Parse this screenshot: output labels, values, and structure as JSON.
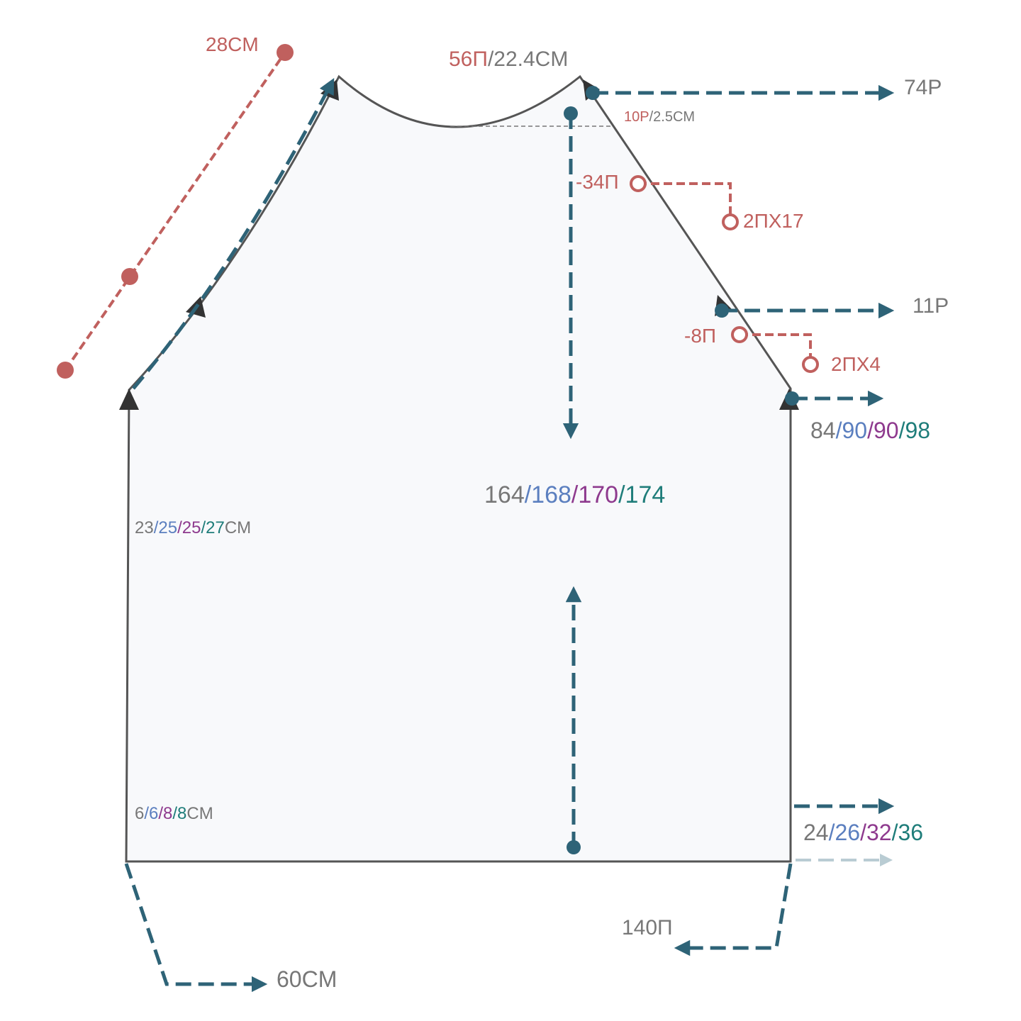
{
  "labels": {
    "armhole_length": [
      {
        "t": "28CM",
        "c": "#c0605e"
      }
    ],
    "neck": [
      {
        "t": "56П",
        "c": "#c0605e"
      },
      {
        "t": "/22.4CM",
        "c": "#777777"
      }
    ],
    "rows_74": [
      {
        "t": "74P",
        "c": "#777777"
      }
    ],
    "neck_depth": [
      {
        "t": "10P",
        "c": "#c0605e"
      },
      {
        "t": "/2.5CM",
        "c": "#777777"
      }
    ],
    "dec_34": [
      {
        "t": "-34П",
        "c": "#c0605e"
      }
    ],
    "dec_2x17": [
      {
        "t": "2ПX17",
        "c": "#c0605e"
      }
    ],
    "rows_11": [
      {
        "t": "11P",
        "c": "#777777"
      }
    ],
    "dec_8": [
      {
        "t": "-8П",
        "c": "#c0605e"
      }
    ],
    "dec_2x4": [
      {
        "t": "2ПX4",
        "c": "#c0605e"
      }
    ],
    "raglan_rows": [
      {
        "t": "84",
        "c": "#777777"
      },
      {
        "t": "/90",
        "c": "#5b7fbf"
      },
      {
        "t": "/90",
        "c": "#8e3a8e"
      },
      {
        "t": "/98",
        "c": "#1f7d7a"
      }
    ],
    "stitches": [
      {
        "t": "164",
        "c": "#777777"
      },
      {
        "t": "/168",
        "c": "#5b7fbf"
      },
      {
        "t": "/170",
        "c": "#8e3a8e"
      },
      {
        "t": "/174",
        "c": "#1f7d7a"
      }
    ],
    "body_length": [
      {
        "t": "23",
        "c": "#777777"
      },
      {
        "t": "/25",
        "c": "#5b7fbf"
      },
      {
        "t": "/25",
        "c": "#8e3a8e"
      },
      {
        "t": "/27",
        "c": "#1f7d7a"
      },
      {
        "t": "CM",
        "c": "#777777"
      }
    ],
    "rib_length": [
      {
        "t": "6",
        "c": "#777777"
      },
      {
        "t": "/6",
        "c": "#5b7fbf"
      },
      {
        "t": "/8",
        "c": "#8e3a8e"
      },
      {
        "t": "/8",
        "c": "#1f7d7a"
      },
      {
        "t": "CM",
        "c": "#777777"
      }
    ],
    "rib_rows": [
      {
        "t": "24",
        "c": "#777777"
      },
      {
        "t": "/26",
        "c": "#5b7fbf"
      },
      {
        "t": "/32",
        "c": "#8e3a8e"
      },
      {
        "t": "/36",
        "c": "#1f7d7a"
      }
    ],
    "cast_on": [
      {
        "t": "140П",
        "c": "#777777"
      }
    ],
    "width": [
      {
        "t": "60CM",
        "c": "#777777"
      }
    ]
  }
}
